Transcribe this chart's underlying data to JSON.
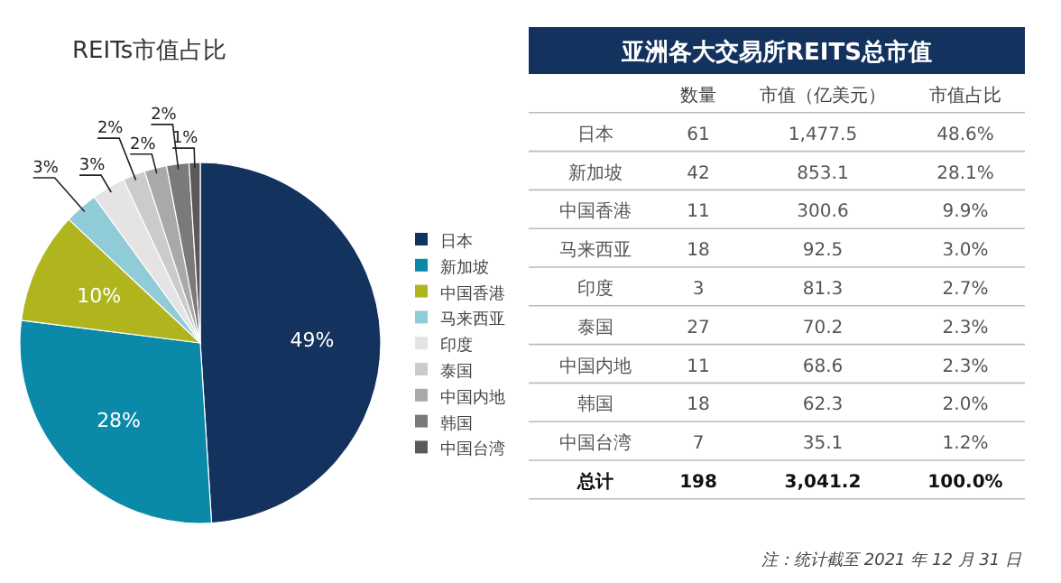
{
  "chart_data": [
    {
      "type": "pie",
      "title": "REITs市值占比",
      "categories": [
        "日本",
        "新加坡",
        "中国香港",
        "马来西亚",
        "印度",
        "泰国",
        "中国内地",
        "韩国",
        "中国台湾"
      ],
      "values": [
        49,
        28,
        10,
        3,
        3,
        2,
        2,
        2,
        1
      ],
      "colors": [
        "#13325d",
        "#0a8aa8",
        "#b0b51e",
        "#90cbd8",
        "#e5e3e3",
        "#cbcbcb",
        "#a9a9a9",
        "#7a7a7a",
        "#5a5a5a"
      ],
      "value_labels": [
        "49%",
        "28%",
        "10%",
        "3%",
        "3%",
        "2%",
        "2%",
        "2%",
        "1%"
      ],
      "legend": "right"
    },
    {
      "type": "other",
      "title": "亚洲各大交易所REITS总市值",
      "categories": [
        "日本",
        "新加坡",
        "中国香港",
        "马来西亚",
        "印度",
        "泰国",
        "中国内地",
        "韩国",
        "中国台湾",
        "总计"
      ],
      "series": [
        {
          "name": "数量",
          "values": [
            61,
            42,
            11,
            18,
            3,
            27,
            11,
            18,
            7,
            198
          ],
          "value_labels": [
            "61",
            "42",
            "11",
            "18",
            "3",
            "27",
            "11",
            "18",
            "7",
            "198"
          ]
        },
        {
          "name": "市值（亿美元）",
          "values": [
            1477.5,
            853.1,
            300.6,
            92.5,
            81.3,
            70.2,
            68.6,
            62.3,
            35.1,
            3041.2
          ],
          "value_labels": [
            "1,477.5",
            "853.1",
            "300.6",
            "92.5",
            "81.3",
            "70.2",
            "68.6",
            "62.3",
            "35.1",
            "3,041.2"
          ]
        },
        {
          "name": "市值占比",
          "values": [
            48.6,
            28.1,
            9.9,
            3.0,
            2.7,
            2.3,
            2.3,
            2.0,
            1.2,
            100.0
          ],
          "value_labels": [
            "48.6%",
            "28.1%",
            "9.9%",
            "3.0%",
            "2.7%",
            "2.3%",
            "2.3%",
            "2.0%",
            "1.2%",
            "100.0%"
          ]
        }
      ],
      "annotations": [
        "注：统计截至 2021 年 12 月 31 日"
      ]
    }
  ]
}
